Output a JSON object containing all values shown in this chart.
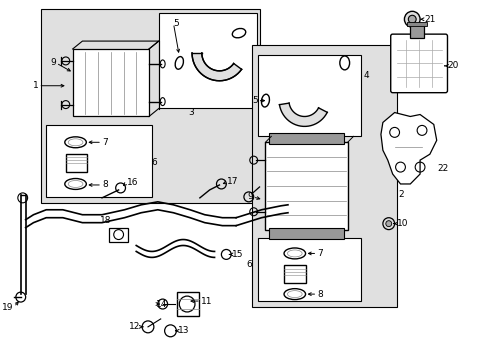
{
  "bg_color": "#ffffff",
  "fig_width": 4.89,
  "fig_height": 3.6,
  "dpi": 100,
  "shade_color": "#e0e0e0",
  "line_color": "#000000",
  "fs": 6.5
}
